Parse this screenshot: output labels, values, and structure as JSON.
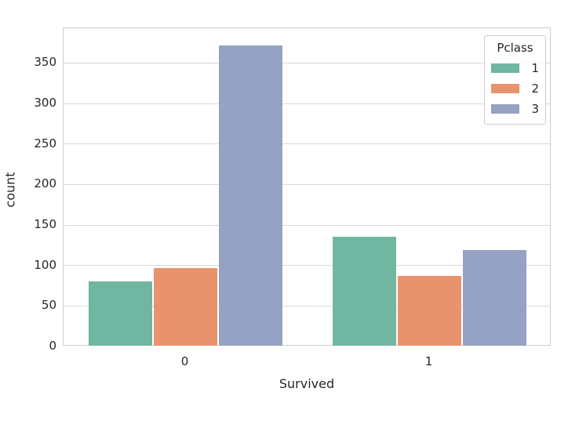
{
  "chart_data": {
    "type": "bar",
    "title": "",
    "xlabel": "Survived",
    "ylabel": "count",
    "categories": [
      "0",
      "1"
    ],
    "series": [
      {
        "name": "1",
        "color": "#70b6a0",
        "values": [
          80,
          136
        ]
      },
      {
        "name": "2",
        "color": "#e9926e",
        "values": [
          97,
          87
        ]
      },
      {
        "name": "3",
        "color": "#95a2c3",
        "values": [
          372,
          119
        ]
      }
    ],
    "yticks": [
      0,
      50,
      100,
      150,
      200,
      250,
      300,
      350
    ],
    "ylim": [
      0,
      393
    ],
    "grid": true,
    "legend": {
      "title": "Pclass",
      "position": "upper right"
    },
    "colors": {
      "grid": "#d9d9d9",
      "spine": "#cccccc",
      "text": "#262626",
      "background": "#ffffff"
    }
  }
}
